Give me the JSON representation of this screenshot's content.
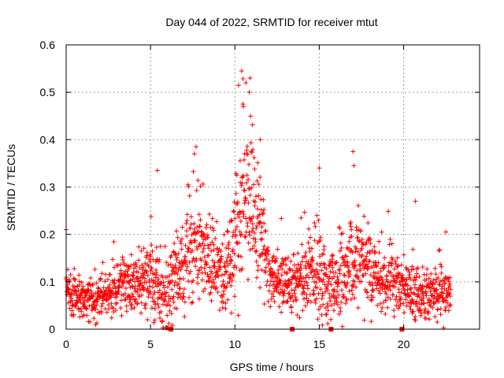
{
  "chart_data": {
    "type": "scatter",
    "title": "Day 044 of 2022, SRMTID for receiver mtut",
    "xlabel": "GPS time / hours",
    "ylabel": "SRMTID / TECUs",
    "xlim": [
      0,
      24.5
    ],
    "ylim": [
      0,
      0.6
    ],
    "xticks": [
      0,
      5,
      10,
      15,
      20
    ],
    "yticks": [
      0,
      0.1,
      0.2,
      0.3,
      0.4,
      0.5,
      0.6
    ],
    "xtick_labels": [
      "0",
      "5",
      "10",
      "15",
      "20"
    ],
    "ytick_labels": [
      "0",
      "0.1",
      "0.2",
      "0.3",
      "0.4",
      "0.5",
      "0.6"
    ],
    "grid": true,
    "series": [
      {
        "name": "SRMTID",
        "marker": "+",
        "color": "#ff0000",
        "profile_hours": [
          0,
          0.5,
          1,
          1.5,
          2,
          2.5,
          3,
          3.5,
          4,
          4.5,
          5,
          5.5,
          6,
          6.5,
          7,
          7.5,
          8,
          8.5,
          9,
          9.5,
          10,
          10.5,
          11,
          11.5,
          12,
          12.5,
          13,
          13.5,
          14,
          14.5,
          15,
          15.5,
          16,
          16.5,
          17,
          17.5,
          18,
          18.5,
          19,
          19.5,
          20,
          20.5,
          21,
          21.5,
          22,
          22.5,
          22.8
        ],
        "profile_center": [
          0.07,
          0.07,
          0.065,
          0.065,
          0.07,
          0.075,
          0.08,
          0.09,
          0.1,
          0.11,
          0.11,
          0.08,
          0.07,
          0.1,
          0.13,
          0.17,
          0.17,
          0.15,
          0.13,
          0.12,
          0.2,
          0.3,
          0.28,
          0.2,
          0.12,
          0.1,
          0.09,
          0.1,
          0.11,
          0.12,
          0.12,
          0.08,
          0.1,
          0.12,
          0.14,
          0.15,
          0.13,
          0.11,
          0.1,
          0.1,
          0.09,
          0.08,
          0.07,
          0.07,
          0.07,
          0.08,
          0.08
        ],
        "profile_spread": [
          0.05,
          0.04,
          0.04,
          0.04,
          0.04,
          0.04,
          0.05,
          0.05,
          0.05,
          0.06,
          0.07,
          0.07,
          0.08,
          0.08,
          0.09,
          0.1,
          0.09,
          0.08,
          0.07,
          0.07,
          0.12,
          0.15,
          0.14,
          0.1,
          0.05,
          0.05,
          0.05,
          0.05,
          0.06,
          0.07,
          0.08,
          0.07,
          0.07,
          0.08,
          0.09,
          0.08,
          0.08,
          0.07,
          0.06,
          0.06,
          0.05,
          0.05,
          0.05,
          0.05,
          0.05,
          0.05,
          0.05
        ],
        "notable_points": [
          {
            "x": 10.4,
            "y": 0.545
          },
          {
            "x": 10.65,
            "y": 0.52
          },
          {
            "x": 10.9,
            "y": 0.53
          },
          {
            "x": 10.85,
            "y": 0.5
          },
          {
            "x": 10.5,
            "y": 0.47
          },
          {
            "x": 11.5,
            "y": 0.4
          },
          {
            "x": 7.7,
            "y": 0.385
          },
          {
            "x": 7.6,
            "y": 0.37
          },
          {
            "x": 5.4,
            "y": 0.335
          },
          {
            "x": 15.0,
            "y": 0.34
          },
          {
            "x": 17.0,
            "y": 0.375
          },
          {
            "x": 17.05,
            "y": 0.345
          },
          {
            "x": 20.7,
            "y": 0.27
          },
          {
            "x": 22.5,
            "y": 0.205
          },
          {
            "x": 0.0,
            "y": 0.21
          }
        ],
        "zero_markers_x": [
          6.2,
          13.4,
          15.7,
          19.9
        ]
      }
    ]
  }
}
